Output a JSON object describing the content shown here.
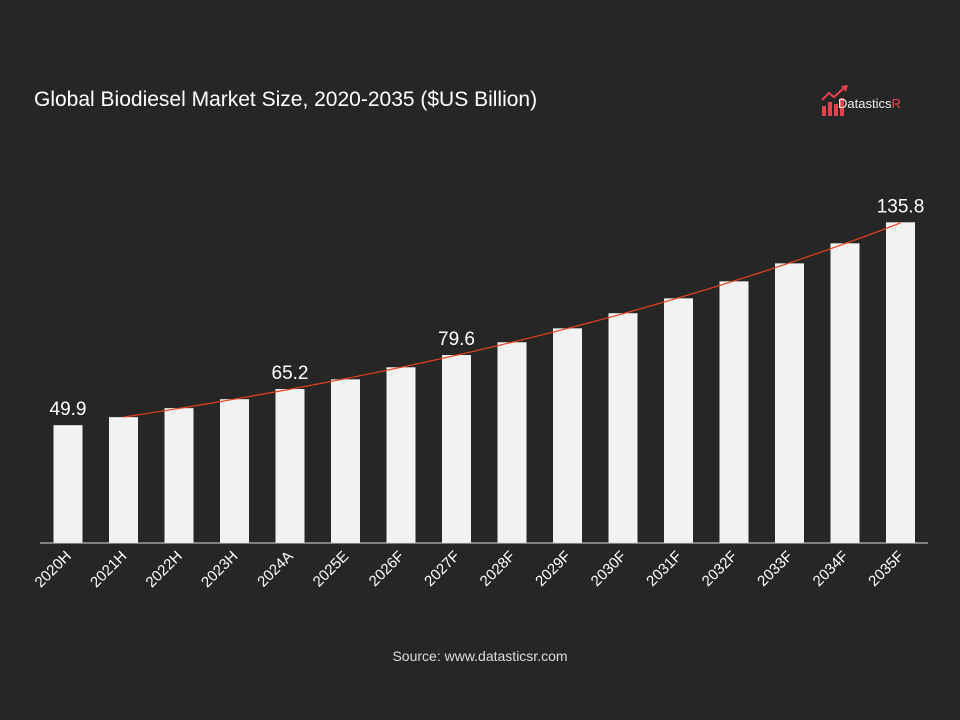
{
  "chart_data": {
    "type": "bar",
    "title": "Global Biodiesel Market Size, 2020-2035 ($US Billion)",
    "categories": [
      "2020H",
      "2021H",
      "2022H",
      "2023H",
      "2024A",
      "2025E",
      "2026F",
      "2027F",
      "2028F",
      "2029F",
      "2030F",
      "2031F",
      "2032F",
      "2033F",
      "2034F",
      "2035F"
    ],
    "values": [
      49.9,
      53.3,
      57.1,
      60.9,
      65.2,
      69.3,
      74.4,
      79.6,
      85.0,
      90.9,
      97.3,
      103.6,
      110.8,
      118.4,
      126.9,
      135.8
    ],
    "data_labels": {
      "0": "49.9",
      "4": "65.2",
      "7": "79.6",
      "15": "135.8"
    },
    "trendline": {
      "type": "exponential",
      "from": "2021H",
      "to": "2035F",
      "color": "#e8401c"
    },
    "ylim": [
      0,
      140
    ],
    "grid": false,
    "bar_color": "#f2f2f2",
    "xlabel": "",
    "ylabel": ""
  },
  "logo": {
    "text_main": "Datastics",
    "text_accent": "R",
    "accent_color": "#e8414c"
  },
  "source": "Source: www.datasticsr.com"
}
